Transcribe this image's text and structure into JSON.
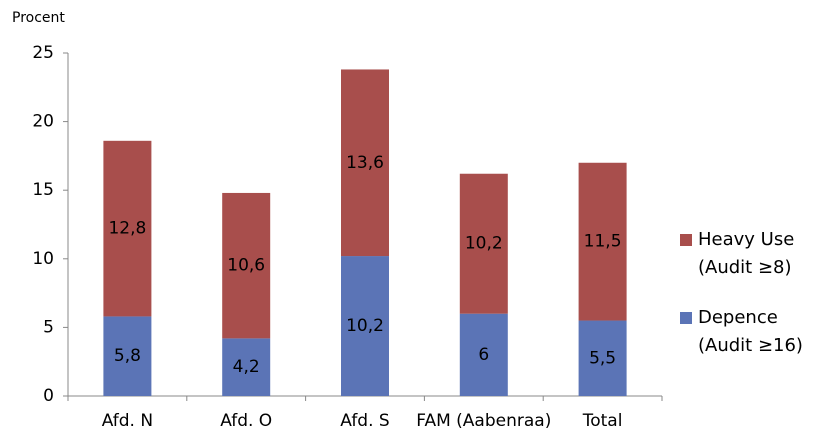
{
  "chart_data": {
    "type": "stacked_bar",
    "y_label": "Procent",
    "categories": [
      "Afd. N",
      "Afd. O",
      "Afd. S",
      "FAM (Aabenraa)",
      "Total"
    ],
    "series": [
      {
        "name": "Depence (Audit ≥16)",
        "color": "#5b74b6",
        "values": [
          5.8,
          4.2,
          10.2,
          6,
          5.5
        ],
        "value_labels": [
          "5,8",
          "4,2",
          "10,2",
          "6",
          "5,5"
        ]
      },
      {
        "name": "Heavy Use (Audit ≥8)",
        "color": "#a84e4c",
        "values": [
          12.8,
          10.6,
          13.6,
          10.2,
          11.5
        ],
        "value_labels": [
          "12,8",
          "10,6",
          "13,6",
          "10,2",
          "11,5"
        ]
      }
    ],
    "ylim": [
      0,
      25
    ],
    "yticks": [
      0,
      5,
      10,
      15,
      20,
      25
    ],
    "grid": false,
    "legend": "right"
  }
}
